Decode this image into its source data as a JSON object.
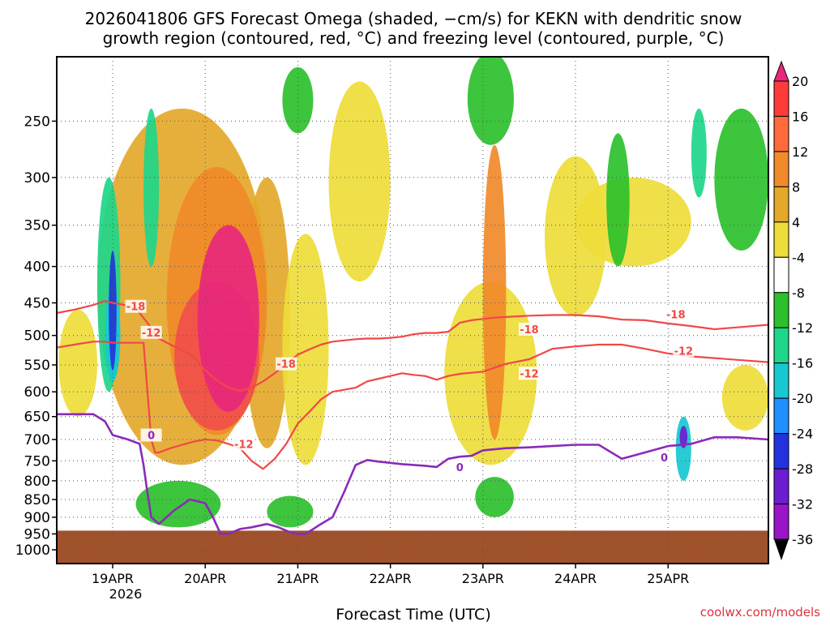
{
  "chart_data": {
    "type": "heatmap",
    "title_line1": "2026041806 GFS Forecast Omega (shaded, −cm/s) for KEKN with dendritic snow",
    "title_line2": "growth region (contoured, red, °C) and freezing level (contoured, purple, °C)",
    "xlabel": "Forecast Time (UTC)",
    "ylabel": "",
    "watermark": "coolwx.com/models",
    "x_ticks": [
      "19APR",
      "20APR",
      "21APR",
      "22APR",
      "23APR",
      "24APR",
      "25APR"
    ],
    "x_year_label": "2026",
    "x_range_hours": [
      -14.5,
      170
    ],
    "y_ticks": [
      "250",
      "300",
      "350",
      "400",
      "450",
      "500",
      "550",
      "600",
      "650",
      "700",
      "750",
      "800",
      "850",
      "900",
      "950",
      "1000"
    ],
    "y_range_hpa": [
      200,
      1035
    ],
    "terrain_top_hpa": 940,
    "colorbar_labels": [
      "20",
      "16",
      "12",
      "8",
      "4",
      "-4",
      "-8",
      "-12",
      "-16",
      "-20",
      "-24",
      "-28",
      "-32",
      "-36"
    ],
    "colorbar_colors": [
      "#ff3a3a",
      "#ff6a3a",
      "#f08a2a",
      "#e4a82a",
      "#eedc3a",
      "#ffffff",
      "#2cc02c",
      "#1ed68a",
      "#18c8d0",
      "#1e90ff",
      "#2233dd",
      "#6a1ed0",
      "#9a14c8",
      "#aaaaaa"
    ],
    "colorbar_top_color": "#e8287c",
    "colorbar_bottom_color": "#000000",
    "contour_labels": {
      "dgz_minus18": "-18",
      "dgz_minus12": "-12",
      "freezing": "0"
    },
    "series": [
      {
        "name": "-18C isotherm",
        "color": "#f04848",
        "hours": [
          -14.5,
          -10,
          -5,
          -2,
          0,
          3,
          6,
          9,
          12,
          15,
          18,
          21,
          24,
          27,
          30,
          33,
          36,
          39,
          42,
          45,
          48,
          51,
          54,
          57,
          60,
          63,
          66,
          69,
          72,
          75,
          78,
          81,
          84,
          87,
          90,
          93,
          96,
          99,
          102,
          105,
          108,
          114,
          120,
          126,
          132,
          138,
          144,
          150,
          156,
          162,
          170
        ],
        "hpa": [
          465,
          460,
          453,
          447,
          450,
          453,
          458,
          480,
          505,
          515,
          525,
          535,
          560,
          578,
          592,
          598,
          592,
          580,
          565,
          548,
          532,
          523,
          515,
          510,
          508,
          506,
          505,
          505,
          504,
          502,
          498,
          496,
          496,
          494,
          480,
          476,
          474,
          472,
          471,
          470,
          469,
          468,
          468,
          470,
          475,
          476,
          481,
          485,
          490,
          487,
          483
        ]
      },
      {
        "name": "-12C isotherm",
        "color": "#f04848",
        "hours": [
          -14.5,
          -10,
          -5,
          -2,
          0,
          2,
          5,
          8,
          10,
          11,
          12,
          15,
          18,
          21,
          24,
          27,
          30,
          33,
          36,
          39,
          42,
          45,
          48,
          51,
          54,
          57,
          60,
          63,
          66,
          69,
          72,
          75,
          78,
          81,
          84,
          87,
          90,
          96,
          102,
          108,
          114,
          120,
          126,
          132,
          138,
          144,
          150,
          156,
          162,
          170
        ],
        "hpa": [
          520,
          515,
          510,
          510,
          512,
          512,
          512,
          512,
          700,
          730,
          730,
          720,
          712,
          705,
          700,
          702,
          710,
          720,
          750,
          770,
          745,
          710,
          665,
          640,
          615,
          600,
          596,
          592,
          580,
          575,
          570,
          565,
          568,
          570,
          577,
          570,
          566,
          562,
          548,
          540,
          522,
          518,
          515,
          515,
          522,
          530,
          535,
          538,
          541,
          545
        ]
      },
      {
        "name": "0C freezing level",
        "color": "#8a2ab8",
        "hours": [
          -14.5,
          -10,
          -5,
          -2,
          0,
          2,
          4,
          7,
          8,
          9,
          10,
          12,
          16,
          20,
          24,
          26,
          28,
          30,
          33,
          36,
          40,
          43,
          46,
          48,
          50,
          52,
          54,
          57,
          60,
          63,
          66,
          69,
          72,
          75,
          78,
          81,
          84,
          87,
          90,
          93,
          96,
          102,
          108,
          114,
          120,
          126,
          132,
          138,
          144,
          150,
          156,
          162,
          170
        ],
        "hpa": [
          645,
          645,
          645,
          660,
          690,
          695,
          700,
          710,
          760,
          830,
          900,
          920,
          880,
          850,
          860,
          900,
          950,
          950,
          935,
          930,
          920,
          930,
          945,
          950,
          950,
          935,
          920,
          900,
          830,
          760,
          748,
          752,
          755,
          758,
          760,
          762,
          765,
          745,
          740,
          738,
          725,
          720,
          718,
          715,
          712,
          712,
          745,
          730,
          715,
          710,
          695,
          695,
          700
        ]
      }
    ],
    "shaded_regions": [
      {
        "category": "8",
        "h0": -4,
        "h1": 40,
        "p0": 240,
        "p1": 760
      },
      {
        "category": "8",
        "h0": 34,
        "h1": 46,
        "p0": 300,
        "p1": 720
      },
      {
        "category": "4",
        "h0": 44,
        "h1": 56,
        "p0": 360,
        "p1": 760
      },
      {
        "category": "4",
        "h0": -14,
        "h1": -4,
        "p0": 460,
        "p1": 650
      },
      {
        "category": "4",
        "h0": 56,
        "h1": 72,
        "p0": 220,
        "p1": 420
      },
      {
        "category": "4",
        "h0": 86,
        "h1": 110,
        "p0": 420,
        "p1": 760
      },
      {
        "category": "4",
        "h0": 112,
        "h1": 128,
        "p0": 280,
        "p1": 470
      },
      {
        "category": "4",
        "h0": 120,
        "h1": 150,
        "p0": 300,
        "p1": 400
      },
      {
        "category": "4",
        "h0": 158,
        "h1": 170,
        "p0": 550,
        "p1": 680
      },
      {
        "category": "12",
        "h0": 14,
        "h1": 40,
        "p0": 290,
        "p1": 690
      },
      {
        "category": "16",
        "h0": 16,
        "h1": 38,
        "p0": 420,
        "p1": 680
      },
      {
        "category": "20",
        "h0": 22,
        "h1": 38,
        "p0": 350,
        "p1": 640
      },
      {
        "category": "12",
        "h0": 96,
        "h1": 102,
        "p0": 270,
        "p1": 700
      },
      {
        "category": "-8",
        "h0": 44,
        "h1": 52,
        "p0": 210,
        "p1": 260
      },
      {
        "category": "-8",
        "h0": 92,
        "h1": 104,
        "p0": 200,
        "p1": 270
      },
      {
        "category": "-8",
        "h0": 128,
        "h1": 134,
        "p0": 260,
        "p1": 400
      },
      {
        "category": "-8",
        "h0": 156,
        "h1": 170,
        "p0": 240,
        "p1": 380
      },
      {
        "category": "-8",
        "h0": 6,
        "h1": 28,
        "p0": 800,
        "p1": 930
      },
      {
        "category": "-8",
        "h0": 40,
        "h1": 52,
        "p0": 840,
        "p1": 930
      },
      {
        "category": "-8",
        "h0": 94,
        "h1": 104,
        "p0": 790,
        "p1": 900
      },
      {
        "category": "-12",
        "h0": -4,
        "h1": 2,
        "p0": 300,
        "p1": 600
      },
      {
        "category": "-16",
        "h0": -2,
        "h1": 2,
        "p0": 430,
        "p1": 580
      },
      {
        "category": "-24",
        "h0": -1,
        "h1": 1,
        "p0": 380,
        "p1": 560
      },
      {
        "category": "-12",
        "h0": 8,
        "h1": 12,
        "p0": 240,
        "p1": 400
      },
      {
        "category": "-12",
        "h0": 150,
        "h1": 154,
        "p0": 240,
        "p1": 320
      },
      {
        "category": "-16",
        "h0": 146,
        "h1": 150,
        "p0": 650,
        "p1": 800
      },
      {
        "category": "-28",
        "h0": 147,
        "h1": 149,
        "p0": 670,
        "p1": 720
      }
    ]
  }
}
